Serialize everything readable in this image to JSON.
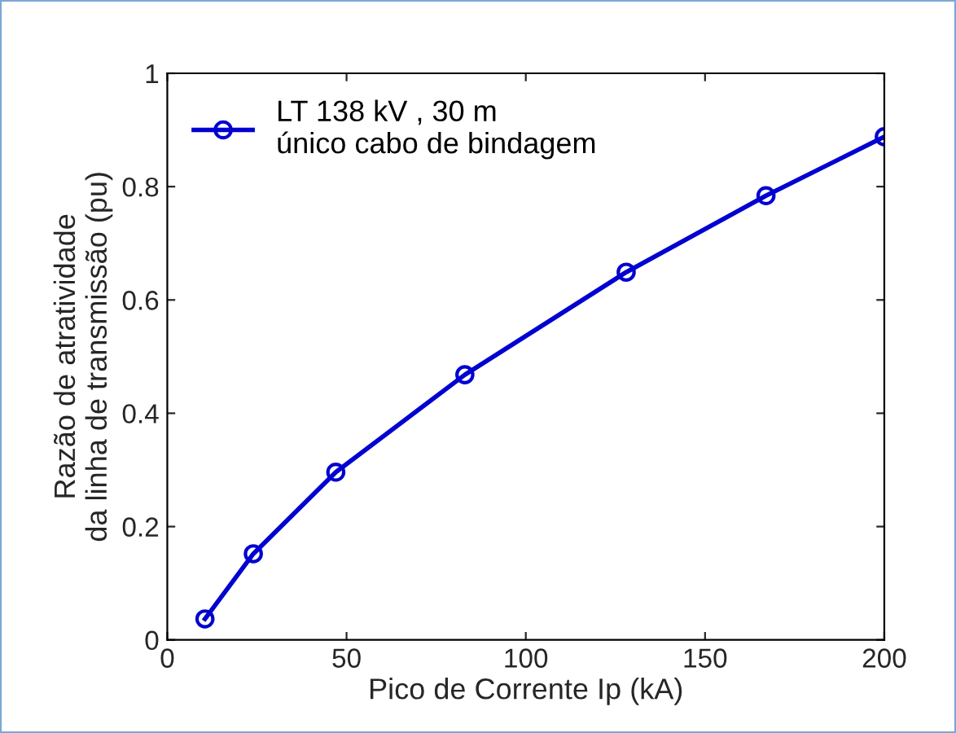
{
  "chart_data": {
    "type": "line",
    "xlabel": "Pico de Corrente Ip (kA)",
    "ylabel": "Razão de atratividade\nda linha de transmissão (pu)",
    "x": [
      10.5,
      24,
      47,
      83,
      128,
      167,
      200
    ],
    "series": [
      {
        "name": "LT 138 kV , 30 m\núnico cabo de bindagem",
        "color": "#0000d0",
        "values": [
          0.037,
          0.152,
          0.296,
          0.468,
          0.649,
          0.784,
          0.888
        ]
      }
    ],
    "xlim": [
      0,
      200
    ],
    "xticks": [
      0,
      50,
      100,
      150,
      200
    ],
    "ylim": [
      0,
      1
    ],
    "yticks": [
      0,
      0.2,
      0.4,
      0.6,
      0.8,
      1
    ],
    "marker": "circle",
    "line_style": "solid",
    "grid": false,
    "legend": "top left"
  }
}
